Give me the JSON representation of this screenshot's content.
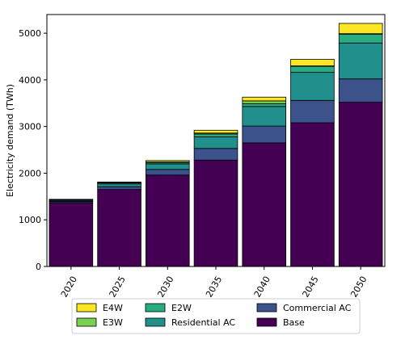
{
  "chart_data": {
    "type": "bar",
    "stacked": true,
    "categories": [
      "2020",
      "2025",
      "2030",
      "2035",
      "2040",
      "2045",
      "2050"
    ],
    "ylabel": "Electricity demand (TWh)",
    "xlabel": "",
    "ylim": [
      0,
      5400
    ],
    "yticks": [
      "0",
      "1000",
      "2000",
      "3000",
      "4000",
      "5000"
    ],
    "grid": false,
    "legend_position": "bottom",
    "series": [
      {
        "name": "Base",
        "color": "#440154",
        "values": [
          1370,
          1650,
          1960,
          2280,
          2650,
          3080,
          3520
        ]
      },
      {
        "name": "Commercial AC",
        "color": "#3b528b",
        "values": [
          25,
          60,
          120,
          250,
          360,
          480,
          500
        ]
      },
      {
        "name": "Residential AC",
        "color": "#21908d",
        "values": [
          20,
          60,
          120,
          250,
          420,
          600,
          770
        ]
      },
      {
        "name": "E2W",
        "color": "#27ad81",
        "values": [
          15,
          20,
          30,
          60,
          60,
          130,
          190
        ]
      },
      {
        "name": "E3W",
        "color": "#7ad151",
        "values": [
          5,
          10,
          10,
          20,
          60,
          10,
          10
        ]
      },
      {
        "name": "E4W",
        "color": "#fde725",
        "values": [
          5,
          10,
          30,
          60,
          80,
          140,
          220
        ]
      }
    ],
    "legend_order": [
      "E4W",
      "E3W",
      "E2W",
      "Residential AC",
      "Commercial AC",
      "Base"
    ]
  }
}
